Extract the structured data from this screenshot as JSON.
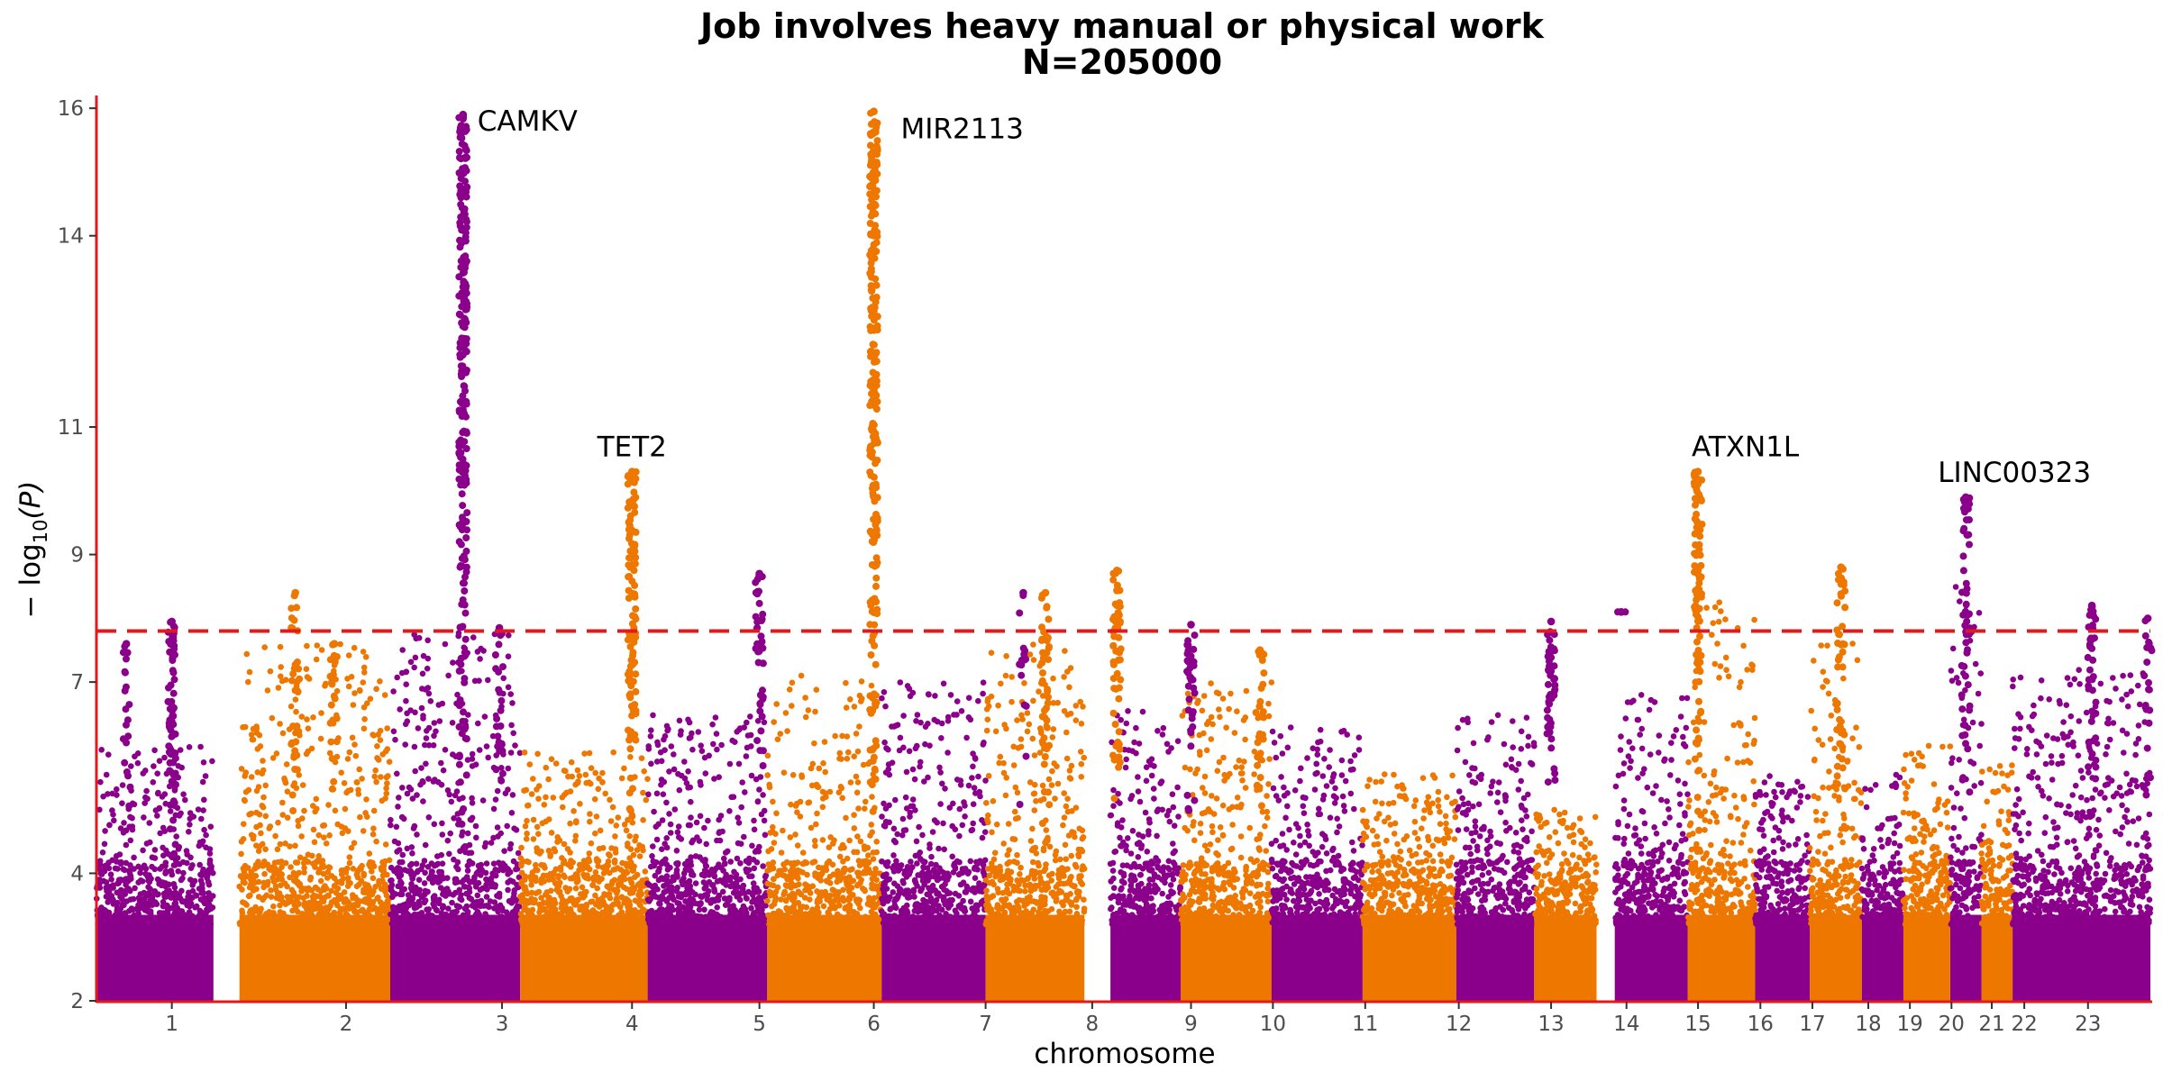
{
  "chart_data": {
    "type": "scatter",
    "subtype": "manhattan",
    "title_line1": "Job involves heavy manual or physical work",
    "title_line2": "N=205000",
    "xlabel": "chromosome",
    "ylabel_prefix": "− log",
    "ylabel_sub": "10",
    "ylabel_suffix": "(P)",
    "ylim": [
      2,
      16.2
    ],
    "yticks": [
      2,
      4,
      7,
      9,
      11,
      14,
      16
    ],
    "significance_threshold": 7.8,
    "colors": {
      "odd": "#8B008B",
      "even": "#EE7700",
      "axis": "#E31A1C",
      "threshold": "#E31A1C"
    },
    "chromosomes": [
      {
        "name": "1",
        "start": 0.0,
        "end": 0.9,
        "peak": 7.95,
        "tail": 6.0
      },
      {
        "name": "2",
        "start": 1.1,
        "end": 2.26,
        "peak": 8.4,
        "tail": 7.6
      },
      {
        "name": "3",
        "start": 2.26,
        "end": 3.26,
        "peak": 15.9,
        "tail": 7.8
      },
      {
        "name": "4",
        "start": 3.26,
        "end": 4.24,
        "peak": 10.3,
        "tail": 5.9
      },
      {
        "name": "5",
        "start": 4.24,
        "end": 5.16,
        "peak": 8.7,
        "tail": 6.5
      },
      {
        "name": "6",
        "start": 5.16,
        "end": 6.04,
        "peak": 15.95,
        "tail": 7.1
      },
      {
        "name": "7",
        "start": 6.04,
        "end": 6.84,
        "peak": 8.4,
        "tail": 7.0
      },
      {
        "name": "8",
        "start": 6.84,
        "end": 7.6,
        "peak": 8.75,
        "tail": 7.6
      },
      {
        "name": "9",
        "start": 7.8,
        "end": 8.34,
        "peak": 7.9,
        "tail": 6.6
      },
      {
        "name": "10",
        "start": 8.34,
        "end": 9.04,
        "peak": 7.5,
        "tail": 7.1
      },
      {
        "name": "11",
        "start": 9.04,
        "end": 9.74,
        "peak": 6.5,
        "tail": 6.3
      },
      {
        "name": "12",
        "start": 9.74,
        "end": 10.46,
        "peak": 6.0,
        "tail": 5.6
      },
      {
        "name": "13",
        "start": 10.46,
        "end": 11.06,
        "peak": 7.95,
        "tail": 6.5
      },
      {
        "name": "14",
        "start": 11.06,
        "end": 11.54,
        "peak": 5.3,
        "tail": 5.0
      },
      {
        "name": "15",
        "start": 11.68,
        "end": 12.24,
        "peak": 8.1,
        "tail": 6.8
      },
      {
        "name": "16",
        "start": 12.24,
        "end": 12.76,
        "peak": 10.3,
        "tail": 8.4
      },
      {
        "name": "17",
        "start": 12.76,
        "end": 13.18,
        "peak": 6.1,
        "tail": 5.6
      },
      {
        "name": "18",
        "start": 13.18,
        "end": 13.58,
        "peak": 8.8,
        "tail": 7.7
      },
      {
        "name": "19",
        "start": 13.58,
        "end": 13.9,
        "peak": 6.0,
        "tail": 5.6
      },
      {
        "name": "20",
        "start": 13.9,
        "end": 14.26,
        "peak": 7.2,
        "tail": 6.1
      },
      {
        "name": "21",
        "start": 14.26,
        "end": 14.5,
        "peak": 9.9,
        "tail": 8.5
      },
      {
        "name": "22",
        "start": 14.5,
        "end": 14.74,
        "peak": 6.0,
        "tail": 5.7
      },
      {
        "name": "23",
        "start": 14.74,
        "end": 15.8,
        "peak": 8.2,
        "tail": 7.2
      }
    ],
    "tick_positions": [
      0.58,
      1.92,
      3.12,
      4.12,
      5.1,
      5.98,
      6.84,
      7.66,
      8.42,
      9.05,
      9.76,
      10.48,
      11.19,
      11.77,
      12.32,
      12.8,
      13.2,
      13.63,
      13.95,
      14.27,
      14.58,
      14.83,
      15.32
    ],
    "peaks": [
      {
        "chr": "1",
        "x": 0.58,
        "top": 7.95,
        "base": 4.0,
        "density": 0.8
      },
      {
        "chr": "1",
        "x": 0.23,
        "top": 7.6,
        "base": 4.5,
        "density": 0.3
      },
      {
        "chr": "2",
        "x": 1.53,
        "top": 8.4,
        "base": 4.5,
        "density": 0.4
      },
      {
        "chr": "2",
        "x": 1.83,
        "top": 7.6,
        "base": 4.5,
        "density": 0.3
      },
      {
        "chr": "3",
        "x": 2.82,
        "top": 15.9,
        "base": 4.2,
        "density": 1.0
      },
      {
        "chr": "3",
        "x": 3.1,
        "top": 7.85,
        "base": 4.5,
        "density": 0.3
      },
      {
        "chr": "4",
        "x": 4.12,
        "top": 10.3,
        "base": 4.5,
        "density": 0.9
      },
      {
        "chr": "5",
        "x": 5.1,
        "top": 8.7,
        "base": 5.0,
        "density": 0.5
      },
      {
        "chr": "6",
        "x": 5.98,
        "top": 15.95,
        "base": 4.5,
        "density": 1.0
      },
      {
        "chr": "7",
        "x": 7.13,
        "top": 8.4,
        "base": 5.0,
        "density": 0.2
      },
      {
        "chr": "8",
        "x": 7.3,
        "top": 8.4,
        "base": 4.5,
        "density": 0.5
      },
      {
        "chr": "8",
        "x": 7.85,
        "top": 8.75,
        "base": 4.5,
        "density": 0.6
      },
      {
        "chr": "9",
        "x": 8.42,
        "top": 7.9,
        "base": 4.5,
        "density": 0.5
      },
      {
        "chr": "10",
        "x": 8.95,
        "top": 7.5,
        "base": 4.5,
        "density": 0.4
      },
      {
        "chr": "13",
        "x": 11.19,
        "top": 7.95,
        "base": 4.5,
        "density": 0.6
      },
      {
        "chr": "15",
        "x": 11.73,
        "top": 8.1,
        "base": 8.1,
        "density": 0.05
      },
      {
        "chr": "16",
        "x": 12.32,
        "top": 10.3,
        "base": 4.2,
        "density": 0.7
      },
      {
        "chr": "18",
        "x": 13.42,
        "top": 8.8,
        "base": 5.0,
        "density": 0.5
      },
      {
        "chr": "21",
        "x": 14.38,
        "top": 9.9,
        "base": 5.0,
        "density": 0.5
      },
      {
        "chr": "23",
        "x": 15.35,
        "top": 8.2,
        "base": 4.5,
        "density": 0.5
      },
      {
        "chr": "23",
        "x": 15.78,
        "top": 8.0,
        "base": 4.5,
        "density": 0.3
      }
    ],
    "annotations": [
      {
        "label": "CAMKV",
        "x": 2.82,
        "y": 15.9
      },
      {
        "label": "MIR2113",
        "x": 5.98,
        "y": 15.95
      },
      {
        "label": "TET2",
        "x": 4.12,
        "y": 10.3
      },
      {
        "label": "ATXN1L",
        "x": 12.32,
        "y": 10.3
      },
      {
        "label": "LINC00323",
        "x": 14.38,
        "y": 9.9
      }
    ]
  }
}
